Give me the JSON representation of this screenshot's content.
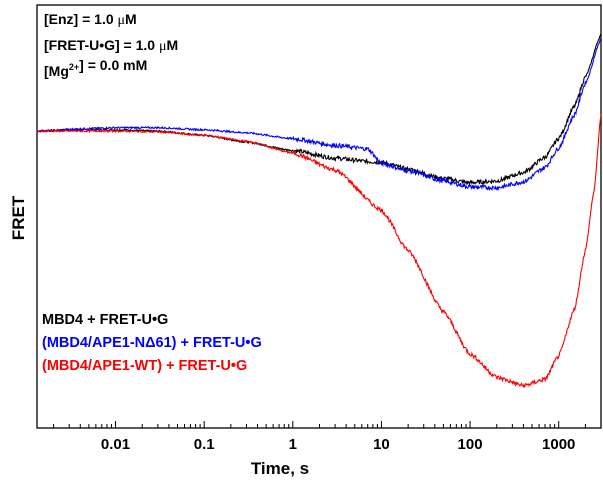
{
  "chart_data": {
    "type": "line",
    "xlabel": "Time, s",
    "ylabel": "FRET",
    "x_scale": "log",
    "xlim": [
      0.0013,
      3000
    ],
    "ylim": [
      0,
      1
    ],
    "x_ticks": [
      {
        "value": 0.01,
        "label": "0.01"
      },
      {
        "value": 0.1,
        "label": "0.1"
      },
      {
        "value": 1,
        "label": "1"
      },
      {
        "value": 10,
        "label": "10"
      },
      {
        "value": 100,
        "label": "100"
      },
      {
        "value": 1000,
        "label": "1000"
      }
    ],
    "y_tick_labels": false,
    "grid": false,
    "legend_position": "bottom-left",
    "annotations": [
      {
        "id": "enz",
        "parts": [
          {
            "text": "[Enz] = 1.0 "
          },
          {
            "text": "μ",
            "font": "serif"
          },
          {
            "text": "M"
          }
        ]
      },
      {
        "id": "fret",
        "parts": [
          {
            "text": "[FRET-U•G] = 1.0 "
          },
          {
            "text": "μ",
            "font": "serif"
          },
          {
            "text": "M"
          }
        ]
      },
      {
        "id": "mg",
        "parts": [
          {
            "text": "[Mg"
          },
          {
            "text": "2+",
            "sup": true
          },
          {
            "text": "] = 0.0 mM"
          }
        ]
      }
    ],
    "series": [
      {
        "name": "MBD4 + FRET-U•G",
        "color": "#000000",
        "x": [
          0.0013,
          0.005,
          0.01,
          0.03,
          0.1,
          0.3,
          1,
          3,
          7,
          10,
          20,
          50,
          100,
          200,
          400,
          700,
          1000,
          1500,
          2000,
          3000
        ],
        "y": [
          0.702,
          0.705,
          0.705,
          0.702,
          0.692,
          0.676,
          0.656,
          0.638,
          0.63,
          0.628,
          0.612,
          0.59,
          0.58,
          0.584,
          0.604,
          0.64,
          0.685,
          0.76,
          0.83,
          0.93
        ]
      },
      {
        "name": "(MBD4/APE1-NΔ61) + FRET-U•G",
        "color": "#0000ff",
        "x": [
          0.0013,
          0.005,
          0.01,
          0.03,
          0.1,
          0.3,
          1,
          3,
          7,
          10,
          20,
          50,
          100,
          200,
          400,
          700,
          1000,
          1500,
          2000,
          3000
        ],
        "y": [
          0.702,
          0.708,
          0.71,
          0.71,
          0.705,
          0.698,
          0.684,
          0.668,
          0.66,
          0.626,
          0.608,
          0.584,
          0.57,
          0.568,
          0.582,
          0.616,
          0.662,
          0.74,
          0.815,
          0.92
        ]
      },
      {
        "name": "(MBD4/APE1-WT) + FRET-U•G",
        "color": "#ff0000",
        "x": [
          0.0013,
          0.005,
          0.01,
          0.03,
          0.1,
          0.3,
          1,
          3,
          10,
          20,
          50,
          100,
          200,
          400,
          700,
          1000,
          1500,
          2000,
          2500,
          3000
        ],
        "y": [
          0.702,
          0.702,
          0.702,
          0.7,
          0.692,
          0.678,
          0.65,
          0.61,
          0.515,
          0.42,
          0.275,
          0.175,
          0.12,
          0.1,
          0.115,
          0.17,
          0.28,
          0.42,
          0.56,
          0.74
        ]
      }
    ]
  }
}
